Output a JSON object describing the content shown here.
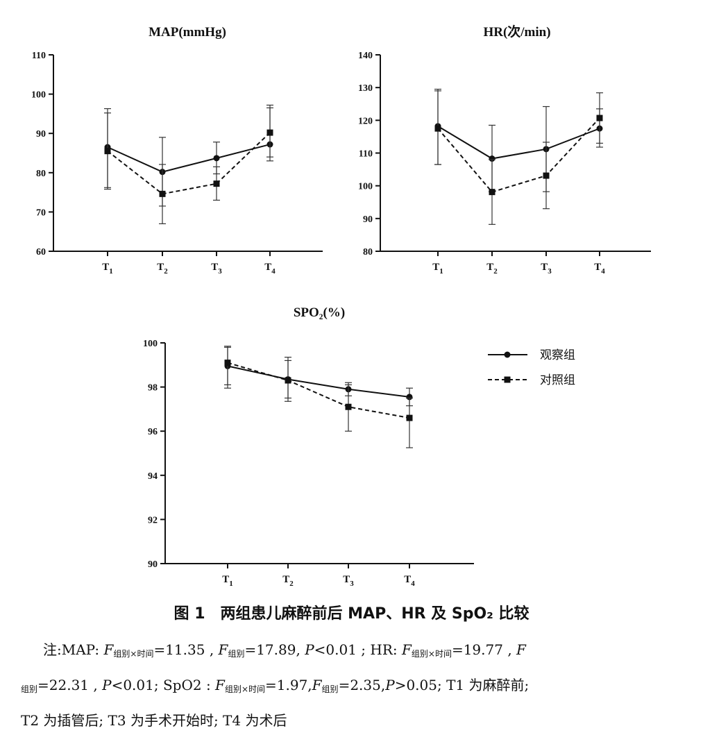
{
  "chart_data": [
    {
      "type": "line",
      "title": "MAP(mmHg)",
      "categories": [
        "T1",
        "T2",
        "T3",
        "T4"
      ],
      "ylim": [
        60,
        110
      ],
      "yticks": [
        60,
        70,
        80,
        90,
        100,
        110
      ],
      "series": [
        {
          "name": "观察组",
          "style": "solid",
          "marker": "circle",
          "values": [
            86.5,
            80.2,
            83.7,
            87.2
          ],
          "err_high": [
            96.3,
            89.0,
            87.8,
            97.2
          ],
          "err_low": [
            76.2,
            71.5,
            79.7,
            83.0
          ]
        },
        {
          "name": "对照组",
          "style": "dashed",
          "marker": "square",
          "values": [
            85.5,
            74.6,
            77.2,
            90.2
          ],
          "err_high": [
            95.2,
            82.1,
            81.5,
            96.5
          ],
          "err_low": [
            75.8,
            67.0,
            73.0,
            84.0
          ]
        }
      ]
    },
    {
      "type": "line",
      "title": "HR(次/min)",
      "categories": [
        "T1",
        "T2",
        "T3",
        "T4"
      ],
      "ylim": [
        80,
        140
      ],
      "yticks": [
        80,
        90,
        100,
        110,
        120,
        130,
        140
      ],
      "series": [
        {
          "name": "观察组",
          "style": "solid",
          "marker": "circle",
          "values": [
            118.2,
            108.3,
            111.2,
            117.5
          ],
          "err_high": [
            129.5,
            118.5,
            124.2,
            123.5
          ],
          "err_low": [
            106.5,
            98.2,
            98.2,
            111.8
          ]
        },
        {
          "name": "对照组",
          "style": "dashed",
          "marker": "square",
          "values": [
            117.5,
            98.1,
            103.1,
            120.7
          ],
          "err_high": [
            129.0,
            108.0,
            113.3,
            128.4
          ],
          "err_low": [
            106.5,
            88.2,
            93.0,
            113.0
          ]
        }
      ]
    },
    {
      "type": "line",
      "title": "SPO₂(%)",
      "categories": [
        "T1",
        "T2",
        "T3",
        "T4"
      ],
      "ylim": [
        90,
        100
      ],
      "yticks": [
        90,
        92,
        94,
        96,
        98,
        100
      ],
      "legend": "right",
      "series": [
        {
          "name": "观察组",
          "style": "solid",
          "marker": "circle",
          "values": [
            98.95,
            98.35,
            97.9,
            97.55
          ],
          "err_high": [
            99.85,
            99.35,
            98.2,
            97.95
          ],
          "err_low": [
            98.1,
            97.5,
            97.6,
            97.15
          ]
        },
        {
          "name": "对照组",
          "style": "dashed",
          "marker": "square",
          "values": [
            99.1,
            98.3,
            97.1,
            96.6
          ],
          "err_high": [
            99.8,
            99.2,
            98.1,
            97.5
          ],
          "err_low": [
            97.95,
            97.35,
            96.0,
            95.25
          ]
        }
      ]
    }
  ],
  "caption": {
    "title": "图 1　两组患儿麻醉前后 MAP、HR 及 SpO₂ 比较",
    "note_prefix": "注:MAP: ",
    "map_f_inter": "=11.35 , ",
    "map_f_group": "=17.89, ",
    "map_p": "<0.01 ; HR: ",
    "hr_f_inter": "=19.77 , ",
    "hr_f_group": "=22.31 , ",
    "hr_p": "<0.01; SpO2 : ",
    "spo_f_inter": "=1.97,",
    "spo_f_group": "=2.35,",
    "spo_p": ">0.05; T1 为麻醉前;",
    "line3": "T2 为插管后; T3 为手术开始时; T4 为术后",
    "F": "F",
    "P": "P",
    "sub_inter": "组别×时间",
    "sub_group": "组别"
  }
}
